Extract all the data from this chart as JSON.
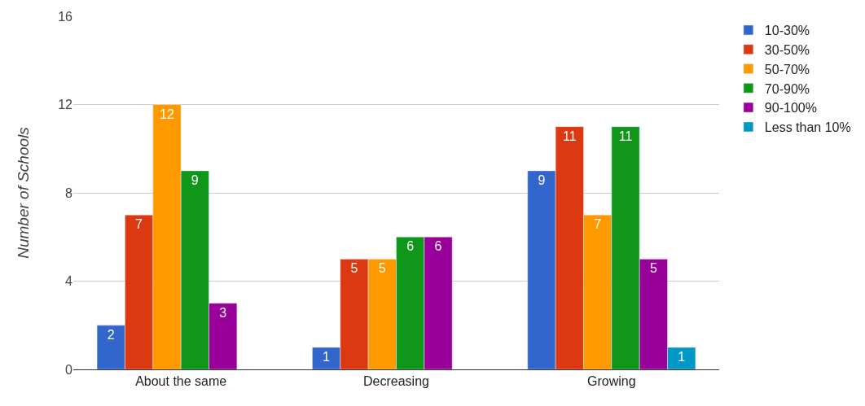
{
  "chart_data": {
    "type": "bar",
    "ylabel": "Number of Schools",
    "categories": [
      "About the same",
      "Decreasing",
      "Growing"
    ],
    "series": [
      {
        "name": "10-30%",
        "color": "#3366cc",
        "values": [
          2,
          1,
          9
        ]
      },
      {
        "name": "30-50%",
        "color": "#dc3912",
        "values": [
          7,
          5,
          11
        ]
      },
      {
        "name": "50-70%",
        "color": "#ff9900",
        "values": [
          12,
          5,
          7
        ]
      },
      {
        "name": "70-90%",
        "color": "#109618",
        "values": [
          9,
          6,
          11
        ]
      },
      {
        "name": "90-100%",
        "color": "#990099",
        "values": [
          3,
          6,
          5
        ]
      },
      {
        "name": "Less than 10%",
        "color": "#0099c6",
        "values": [
          null,
          null,
          1
        ]
      }
    ],
    "ylim": [
      0,
      16
    ],
    "yticks": [
      0,
      4,
      8,
      12,
      16
    ],
    "grid": "y",
    "legend": "top right",
    "data_labels": true
  }
}
